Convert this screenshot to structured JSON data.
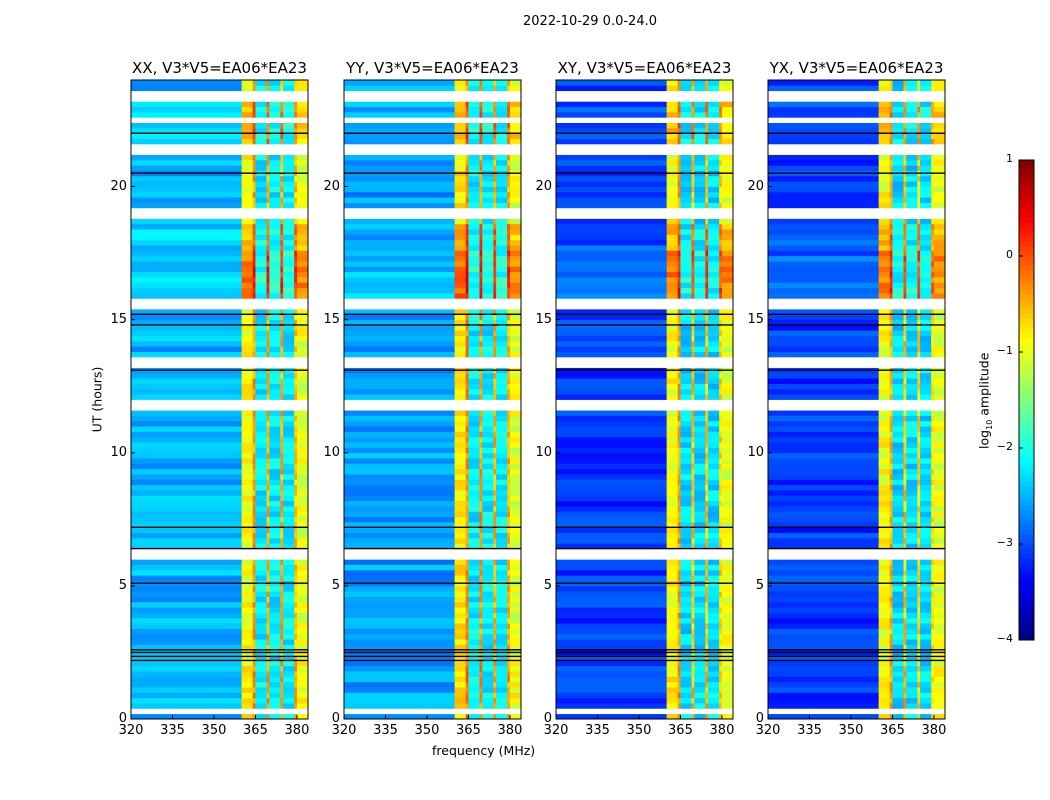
{
  "chart_data": {
    "type": "heatmap",
    "title": "2022-10-29 0.0-24.0",
    "xlabel": "frequency (MHz)",
    "ylabel": "UT (hours)",
    "xlim": [
      320,
      384
    ],
    "ylim": [
      0,
      24
    ],
    "xticks": [
      "320",
      "335",
      "350",
      "365",
      "380"
    ],
    "xtick_values": [
      320,
      335,
      350,
      365,
      380
    ],
    "yticks": [
      "0",
      "5",
      "10",
      "15",
      "20"
    ],
    "ytick_values": [
      0,
      5,
      10,
      15,
      20
    ],
    "colorbar": {
      "label_main": "log",
      "label_sub": "10",
      "label_rest": " amplitude",
      "clim": [
        -4,
        1
      ],
      "ticks": [
        "−4",
        "−3",
        "−2",
        "−1",
        "0",
        "1"
      ],
      "tick_values": [
        -4,
        -3,
        -2,
        -1,
        0,
        1
      ],
      "colormap": "jet"
    },
    "freq_edges": [
      320,
      360,
      364,
      365,
      369,
      370,
      374,
      375,
      379,
      380,
      384
    ],
    "panels": [
      {
        "title": "XX, V3*V5=EA06*EA23",
        "band_levels": [
          -2.5,
          -0.9,
          -0.4,
          -2.2,
          -0.5,
          -2.2,
          -0.5,
          -2.2,
          -0.6,
          -1.0,
          -2.9
        ]
      },
      {
        "title": "YY, V3*V5=EA06*EA23",
        "band_levels": [
          -2.6,
          -0.8,
          -0.3,
          -2.2,
          -0.4,
          -2.2,
          -0.5,
          -2.2,
          -0.5,
          -1.0,
          -3.0
        ]
      },
      {
        "title": "XY, V3*V5=EA06*EA23",
        "band_levels": [
          -3.1,
          -0.9,
          -0.4,
          -2.3,
          -0.6,
          -2.3,
          -0.6,
          -2.3,
          -0.7,
          -1.0,
          -3.1
        ]
      },
      {
        "title": "YX, V3*V5=EA06*EA23",
        "band_levels": [
          -3.1,
          -0.9,
          -0.5,
          -2.3,
          -0.6,
          -2.3,
          -0.7,
          -2.3,
          -0.8,
          -1.0,
          -3.1
        ]
      }
    ],
    "time_modifiers": [
      {
        "start": 0,
        "end": 2.2,
        "delta": 0.1
      },
      {
        "start": 15.8,
        "end": 17.6,
        "delta": 0.7
      },
      {
        "start": 17.6,
        "end": 18.6,
        "delta": 0.4
      },
      {
        "start": 21.6,
        "end": 23.3,
        "delta": 0.35
      }
    ],
    "flagged_times": [
      {
        "start": 0.25,
        "end": 0.4
      },
      {
        "start": 6.1,
        "end": 6.25
      },
      {
        "start": 11.75,
        "end": 11.9
      },
      {
        "start": 13.3,
        "end": 13.45
      },
      {
        "start": 15.45,
        "end": 15.65
      },
      {
        "start": 18.8,
        "end": 19.05
      },
      {
        "start": 21.3,
        "end": 21.6
      },
      {
        "start": 22.45,
        "end": 22.6
      },
      {
        "start": 23.2,
        "end": 23.55
      }
    ],
    "dark_times": [
      2.2,
      2.35,
      2.5,
      2.6,
      5.1,
      6.4,
      7.2,
      13.1,
      14.8,
      15.2,
      20.5,
      22.0
    ]
  }
}
